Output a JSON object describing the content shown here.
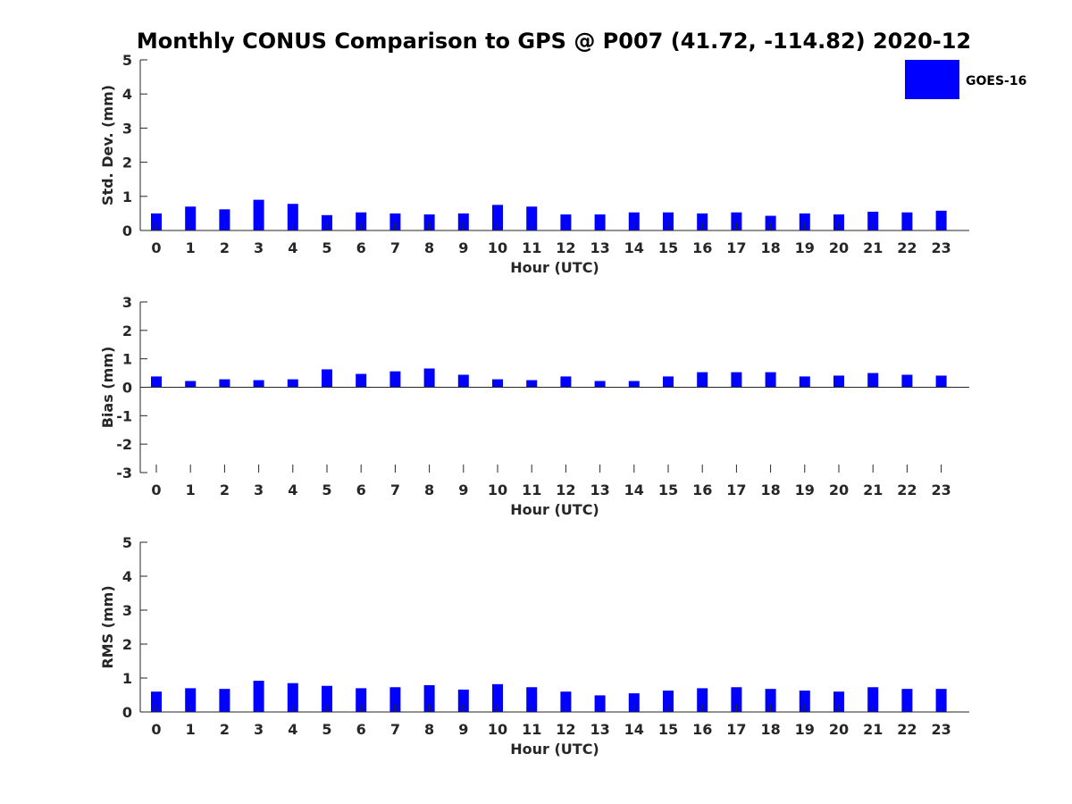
{
  "chart_data": [
    {
      "type": "bar",
      "title": "Monthly CONUS Comparison to GPS @ P007 (41.72, -114.82) 2020-12",
      "legend": {
        "entries": [
          "GOES-16"
        ],
        "placement": "top-right",
        "color": "#0000ff"
      },
      "xlabel": "Hour (UTC)",
      "ylabel": "Std. Dev. (mm)",
      "categories": [
        "0",
        "1",
        "2",
        "3",
        "4",
        "5",
        "6",
        "7",
        "8",
        "9",
        "10",
        "11",
        "12",
        "13",
        "14",
        "15",
        "16",
        "17",
        "18",
        "19",
        "20",
        "21",
        "22",
        "23"
      ],
      "values": [
        0.5,
        0.7,
        0.62,
        0.9,
        0.78,
        0.45,
        0.53,
        0.5,
        0.47,
        0.5,
        0.75,
        0.7,
        0.47,
        0.47,
        0.53,
        0.53,
        0.5,
        0.53,
        0.43,
        0.5,
        0.47,
        0.55,
        0.53,
        0.58
      ],
      "ylim": [
        0,
        5
      ],
      "yticks": [
        0,
        1,
        2,
        3,
        4,
        5
      ],
      "grid": false
    },
    {
      "type": "bar",
      "xlabel": "Hour (UTC)",
      "ylabel": "Bias (mm)",
      "categories": [
        "0",
        "1",
        "2",
        "3",
        "4",
        "5",
        "6",
        "7",
        "8",
        "9",
        "10",
        "11",
        "12",
        "13",
        "14",
        "15",
        "16",
        "17",
        "18",
        "19",
        "20",
        "21",
        "22",
        "23"
      ],
      "values": [
        0.38,
        0.22,
        0.28,
        0.25,
        0.28,
        0.63,
        0.47,
        0.56,
        0.66,
        0.44,
        0.28,
        0.25,
        0.38,
        0.22,
        0.22,
        0.38,
        0.53,
        0.53,
        0.53,
        0.38,
        0.41,
        0.5,
        0.44,
        0.41
      ],
      "ylim": [
        -3,
        3
      ],
      "yticks": [
        -3,
        -2,
        -1,
        0,
        1,
        2,
        3
      ],
      "grid": false
    },
    {
      "type": "bar",
      "xlabel": "Hour (UTC)",
      "ylabel": "RMS (mm)",
      "categories": [
        "0",
        "1",
        "2",
        "3",
        "4",
        "5",
        "6",
        "7",
        "8",
        "9",
        "10",
        "11",
        "12",
        "13",
        "14",
        "15",
        "16",
        "17",
        "18",
        "19",
        "20",
        "21",
        "22",
        "23"
      ],
      "values": [
        0.6,
        0.7,
        0.68,
        0.92,
        0.85,
        0.77,
        0.7,
        0.73,
        0.79,
        0.66,
        0.82,
        0.73,
        0.6,
        0.49,
        0.55,
        0.63,
        0.7,
        0.73,
        0.68,
        0.63,
        0.6,
        0.73,
        0.68,
        0.68
      ],
      "ylim": [
        0,
        5
      ],
      "yticks": [
        0,
        1,
        2,
        3,
        4,
        5
      ],
      "grid": false
    }
  ]
}
